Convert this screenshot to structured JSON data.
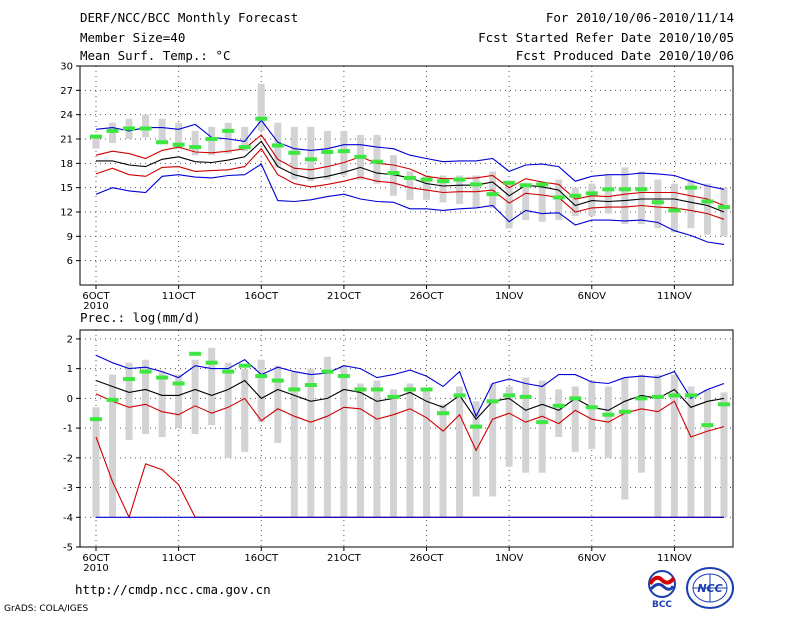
{
  "header": {
    "title": "DERF/NCC/BCC Monthly Forecast",
    "member_size": "Member Size=40",
    "variable": "Mean Surf. Temp.: °C",
    "forecast_period": "For 2010/10/06-2010/11/14",
    "start_date": "Fcst Started Refer Date 2010/10/05",
    "produced_date": "Fcst Produced Date 2010/10/06"
  },
  "footer": {
    "url": "http://cmdp.ncc.cma.gov.cn",
    "credit": "GrADS: COLA/IGES",
    "logo_left_text": "BCC",
    "logo_right_text": "NCC"
  },
  "colors": {
    "bar": "#d3d3d6",
    "green": "#3ee640",
    "ensemble_mean": "#000000",
    "red_band": "#d10000",
    "blue_band": "#0000d6",
    "grid": "#555555"
  },
  "chart_data": [
    {
      "id": "temperature",
      "type": "line",
      "title": "Mean Surf. Temp.: °C",
      "ylabel": "°C",
      "ylim": [
        3,
        30
      ],
      "yticks": [
        6,
        9,
        12,
        15,
        18,
        21,
        24,
        27,
        30
      ],
      "x_start_day": 1,
      "xticks": [
        {
          "day": 1,
          "label": "6OCT",
          "sub": "2010"
        },
        {
          "day": 6,
          "label": "11OCT"
        },
        {
          "day": 11,
          "label": "16OCT"
        },
        {
          "day": 16,
          "label": "21OCT"
        },
        {
          "day": 21,
          "label": "26OCT"
        },
        {
          "day": 26,
          "label": "1NOV"
        },
        {
          "day": 31,
          "label": "6NOV"
        },
        {
          "day": 36,
          "label": "11NOV"
        }
      ],
      "days": 39,
      "bar_low": [
        19.8,
        20.5,
        21.0,
        21.2,
        20.5,
        19.8,
        19.0,
        19.0,
        19.2,
        19.5,
        22.0,
        17.5,
        16.0,
        15.8,
        16.0,
        16.5,
        16.0,
        15.5,
        14.0,
        13.5,
        13.5,
        13.2,
        13.0,
        12.5,
        12.5,
        10.0,
        11.0,
        10.8,
        11.0,
        11.5,
        11.5,
        11.8,
        10.5,
        10.5,
        10.0,
        9.5,
        10.0,
        9.2,
        9.0
      ],
      "bar_high": [
        21.5,
        23.0,
        23.5,
        24.0,
        23.5,
        23.0,
        22.0,
        22.5,
        23.0,
        22.5,
        27.8,
        23.0,
        22.5,
        22.5,
        22.0,
        22.0,
        21.5,
        21.5,
        19.0,
        17.0,
        16.5,
        16.5,
        16.5,
        16.5,
        17.0,
        15.5,
        15.5,
        15.0,
        16.0,
        15.0,
        15.5,
        16.5,
        17.5,
        17.0,
        16.0,
        15.5,
        16.0,
        15.5,
        15.0
      ],
      "observed": [
        21.3,
        22.0,
        22.3,
        22.3,
        20.6,
        20.3,
        20.0,
        21.0,
        22.0,
        20.0,
        23.5,
        20.2,
        19.3,
        18.5,
        19.4,
        19.5,
        18.8,
        18.2,
        16.8,
        16.2,
        16.0,
        15.8,
        16.0,
        15.4,
        14.2,
        15.6,
        15.3,
        15.4,
        13.8,
        14.0,
        14.3,
        14.8,
        14.8,
        14.8,
        13.2,
        12.2,
        15.0,
        13.3,
        12.6
      ],
      "series": [
        {
          "name": "ensemble-mean",
          "color": "black",
          "values": [
            18.3,
            18.3,
            17.8,
            17.6,
            18.5,
            18.8,
            18.2,
            18.1,
            18.4,
            18.8,
            20.7,
            17.6,
            16.6,
            16.1,
            16.4,
            16.9,
            17.5,
            16.8,
            16.6,
            16.2,
            15.5,
            15.2,
            15.3,
            15.3,
            15.7,
            14.0,
            15.3,
            15.1,
            14.7,
            12.8,
            13.4,
            13.3,
            13.4,
            13.6,
            13.6,
            13.6,
            13.2,
            12.8,
            12.0
          ]
        },
        {
          "name": "upper-red",
          "color": "red",
          "values": [
            19.0,
            19.5,
            19.2,
            18.6,
            19.6,
            20.0,
            19.4,
            19.3,
            19.5,
            19.8,
            21.5,
            18.5,
            17.4,
            17.2,
            17.6,
            18.1,
            18.8,
            18.0,
            17.8,
            17.3,
            16.4,
            16.1,
            16.1,
            16.2,
            16.5,
            15.0,
            16.1,
            15.7,
            15.4,
            13.6,
            14.0,
            13.9,
            14.2,
            14.4,
            14.4,
            14.4,
            14.0,
            13.6,
            12.8
          ]
        },
        {
          "name": "lower-red",
          "color": "red",
          "values": [
            16.7,
            17.4,
            16.6,
            16.4,
            17.5,
            17.6,
            17.0,
            17.1,
            17.2,
            17.6,
            19.8,
            16.6,
            15.5,
            15.1,
            15.4,
            15.8,
            16.3,
            15.8,
            15.6,
            15.0,
            14.7,
            14.4,
            14.5,
            14.5,
            14.7,
            13.1,
            14.3,
            14.1,
            13.8,
            12.0,
            12.5,
            12.6,
            12.6,
            12.8,
            12.6,
            12.5,
            12.2,
            11.8,
            11.1
          ]
        },
        {
          "name": "upper-blue",
          "color": "blue",
          "values": [
            22.2,
            22.4,
            22.0,
            22.4,
            22.4,
            22.2,
            22.8,
            21.2,
            21.0,
            20.7,
            23.3,
            20.6,
            19.8,
            19.6,
            19.8,
            20.3,
            20.3,
            20.0,
            19.8,
            19.0,
            18.6,
            18.2,
            18.3,
            18.3,
            18.6,
            17.0,
            17.8,
            17.9,
            17.6,
            15.8,
            16.4,
            16.6,
            16.6,
            16.8,
            16.7,
            16.5,
            15.8,
            15.2,
            14.8
          ]
        },
        {
          "name": "lower-blue",
          "color": "blue",
          "values": [
            14.2,
            15.0,
            14.6,
            14.4,
            16.4,
            16.6,
            16.3,
            16.2,
            16.5,
            16.6,
            17.9,
            13.4,
            13.3,
            13.5,
            13.9,
            14.2,
            13.6,
            13.3,
            13.2,
            12.4,
            12.4,
            12.2,
            12.4,
            12.5,
            12.8,
            10.8,
            12.2,
            11.8,
            11.9,
            10.4,
            11.0,
            11.0,
            10.9,
            11.0,
            10.7,
            9.7,
            9.1,
            8.3,
            8.0
          ]
        }
      ]
    },
    {
      "id": "precipitation",
      "type": "line",
      "title": "Prec.: log(mm/d)",
      "ylabel": "log(mm/d)",
      "ylim": [
        -5,
        2.3
      ],
      "yticks": [
        -5,
        -4,
        -3,
        -2,
        -1,
        0,
        1,
        2
      ],
      "x_start_day": 1,
      "xticks": [
        {
          "day": 1,
          "label": "6OCT",
          "sub": "2010"
        },
        {
          "day": 6,
          "label": "11OCT"
        },
        {
          "day": 11,
          "label": "16OCT"
        },
        {
          "day": 16,
          "label": "21OCT"
        },
        {
          "day": 21,
          "label": "26OCT"
        },
        {
          "day": 26,
          "label": "1NOV"
        },
        {
          "day": 31,
          "label": "6NOV"
        },
        {
          "day": 36,
          "label": "11NOV"
        }
      ],
      "days": 39,
      "bar_low": [
        -4.0,
        -4.0,
        -1.4,
        -1.2,
        -1.3,
        -1.0,
        -1.2,
        -0.9,
        -2.0,
        -1.8,
        -0.8,
        -1.5,
        -4.0,
        -4.0,
        -4.0,
        -4.0,
        -4.0,
        -4.0,
        -4.0,
        -4.0,
        -4.0,
        -4.0,
        -4.0,
        -3.3,
        -3.3,
        -2.3,
        -2.5,
        -2.5,
        -1.3,
        -1.8,
        -1.7,
        -2.0,
        -3.4,
        -2.5,
        -4.0,
        -4.0,
        -4.0,
        -4.0,
        -4.0
      ],
      "bar_high": [
        -0.3,
        0.8,
        1.2,
        1.3,
        0.9,
        0.8,
        1.3,
        1.7,
        1.2,
        1.0,
        1.3,
        1.1,
        0.9,
        1.0,
        1.4,
        1.1,
        0.5,
        0.6,
        0.3,
        0.5,
        0.3,
        -0.2,
        0.4,
        -0.1,
        0.5,
        0.4,
        0.7,
        0.6,
        0.3,
        0.4,
        0.6,
        0.4,
        0.7,
        0.8,
        0.8,
        0.8,
        0.4,
        0.3,
        0.2
      ],
      "observed": [
        -0.7,
        -0.05,
        0.65,
        0.9,
        0.7,
        0.5,
        1.5,
        1.2,
        0.9,
        1.1,
        0.75,
        0.6,
        0.3,
        0.45,
        0.9,
        0.75,
        0.3,
        0.3,
        0.05,
        0.3,
        0.3,
        -0.5,
        0.1,
        -0.95,
        -0.1,
        0.1,
        0.05,
        -0.8,
        -0.25,
        0.0,
        -0.3,
        -0.55,
        -0.45,
        0.0,
        0.05,
        0.1,
        0.1,
        -0.9,
        -0.2
      ],
      "series": [
        {
          "name": "ensemble-mean",
          "color": "black",
          "values": [
            0.6,
            0.4,
            0.2,
            0.3,
            0.1,
            0.1,
            0.3,
            0.1,
            0.3,
            0.6,
            0.0,
            0.3,
            0.1,
            -0.1,
            0.0,
            0.3,
            0.2,
            -0.1,
            0.0,
            0.2,
            -0.1,
            -0.3,
            0.1,
            -0.7,
            -0.1,
            0.0,
            -0.4,
            -0.2,
            -0.4,
            0.0,
            -0.3,
            -0.4,
            -0.1,
            0.1,
            0.0,
            0.3,
            -0.3,
            -0.1,
            0.0
          ]
        },
        {
          "name": "upper-red",
          "color": "red",
          "values": [
            0.15,
            -0.1,
            -0.3,
            -0.2,
            -0.45,
            -0.55,
            -0.25,
            -0.5,
            -0.3,
            0.0,
            -0.75,
            -0.35,
            -0.6,
            -0.8,
            -0.6,
            -0.3,
            -0.35,
            -0.7,
            -0.55,
            -0.35,
            -0.65,
            -1.1,
            -0.55,
            -1.75,
            -0.7,
            -0.5,
            -0.8,
            -0.6,
            -0.85,
            -0.4,
            -0.7,
            -0.8,
            -0.5,
            -0.35,
            -0.45,
            -0.1,
            -1.3,
            -1.1,
            -0.95
          ]
        },
        {
          "name": "lower-red",
          "color": "red",
          "values": [
            -1.3,
            -2.8,
            -4.0,
            -2.2,
            -2.4,
            -2.9,
            -4.0,
            -4.0,
            -4.0,
            -4.0,
            -4.0,
            -4.0,
            -4.0,
            -4.0,
            -4.0,
            -4.0,
            -4.0,
            -4.0,
            -4.0,
            -4.0,
            -4.0,
            -4.0,
            -4.0,
            -4.0,
            -4.0,
            -4.0,
            -4.0,
            -4.0,
            -4.0,
            -4.0,
            -4.0,
            -4.0,
            -4.0,
            -4.0,
            -4.0,
            -4.0,
            -4.0,
            -4.0,
            -4.0
          ]
        },
        {
          "name": "upper-blue",
          "color": "blue",
          "values": [
            1.45,
            1.2,
            1.0,
            1.05,
            0.9,
            0.7,
            1.1,
            1.0,
            1.0,
            1.3,
            0.8,
            1.05,
            0.9,
            0.8,
            0.85,
            1.1,
            1.0,
            0.7,
            0.8,
            0.95,
            0.75,
            0.4,
            0.9,
            -0.6,
            0.5,
            0.65,
            0.5,
            0.4,
            0.8,
            0.8,
            0.55,
            0.5,
            0.7,
            0.75,
            0.7,
            0.9,
            0.0,
            0.3,
            0.5
          ]
        },
        {
          "name": "lower-blue",
          "color": "blue",
          "values": [
            -4.0,
            -4.0,
            -4.0,
            -4.0,
            -4.0,
            -4.0,
            -4.0,
            -4.0,
            -4.0,
            -4.0,
            -4.0,
            -4.0,
            -4.0,
            -4.0,
            -4.0,
            -4.0,
            -4.0,
            -4.0,
            -4.0,
            -4.0,
            -4.0,
            -4.0,
            -4.0,
            -4.0,
            -4.0,
            -4.0,
            -4.0,
            -4.0,
            -4.0,
            -4.0,
            -4.0,
            -4.0,
            -4.0,
            -4.0,
            -4.0,
            -4.0,
            -4.0,
            -4.0,
            -4.0
          ]
        }
      ]
    }
  ]
}
